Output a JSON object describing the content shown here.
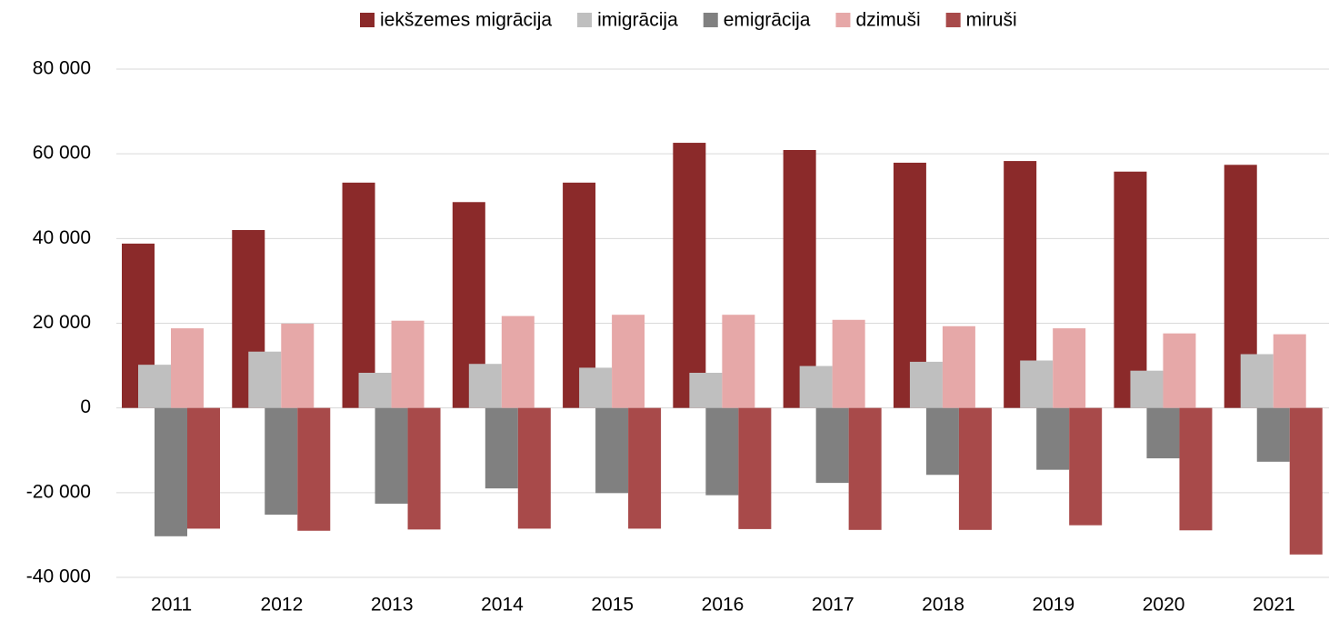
{
  "chart_data": {
    "type": "bar",
    "categories": [
      "2011",
      "2012",
      "2013",
      "2014",
      "2015",
      "2016",
      "2017",
      "2018",
      "2019",
      "2020",
      "2021"
    ],
    "series": [
      {
        "name": "iekšzemes migrācija",
        "color": "#8b2a2a",
        "values": [
          38800,
          42000,
          53200,
          48600,
          53200,
          62600,
          60900,
          57900,
          58300,
          55800,
          57400
        ]
      },
      {
        "name": "imigrācija",
        "color": "#bfbfbf",
        "values": [
          10200,
          13300,
          8300,
          10400,
          9500,
          8300,
          9900,
          10900,
          11200,
          8800,
          12700
        ]
      },
      {
        "name": "emigrācija",
        "color": "#808080",
        "values": [
          -30300,
          -25200,
          -22600,
          -19000,
          -20100,
          -20600,
          -17700,
          -15800,
          -14600,
          -11900,
          -12700
        ]
      },
      {
        "name": "dzimuši",
        "color": "#e6a8a8",
        "values": [
          18800,
          19900,
          20600,
          21700,
          22000,
          22000,
          20800,
          19300,
          18800,
          17600,
          17400
        ]
      },
      {
        "name": "miruši",
        "color": "#a84a4a",
        "values": [
          -28500,
          -29000,
          -28700,
          -28500,
          -28500,
          -28600,
          -28800,
          -28800,
          -27700,
          -28900,
          -34600
        ]
      }
    ],
    "ylim": [
      -40000,
      80000
    ],
    "yticks": [
      {
        "value": -40000,
        "label": "-40 000"
      },
      {
        "value": -20000,
        "label": "-20 000"
      },
      0,
      {
        "value": 20000,
        "label": "20 000"
      },
      {
        "value": 40000,
        "label": "40 000"
      },
      {
        "value": 60000,
        "label": "60 000"
      },
      {
        "value": 80000,
        "label": "80 000"
      }
    ],
    "grid": true,
    "legend": "top"
  }
}
